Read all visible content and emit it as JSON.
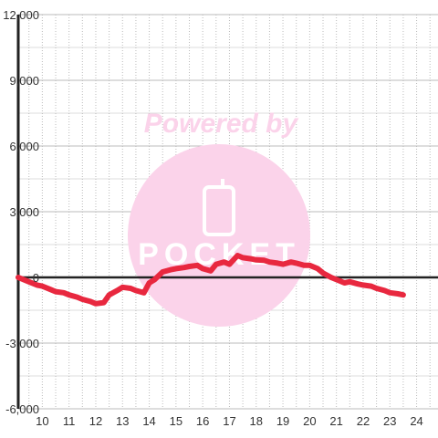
{
  "watermark": {
    "powered_by": "Powered by",
    "brand": "POCKET",
    "icon": "phone-icon",
    "color": "#fbd3ea"
  },
  "colors": {
    "line": "#e8283f",
    "zero_line": "#222222",
    "grid_major": "#bbbbbb",
    "grid_minor": "#dddddd"
  },
  "chart_data": {
    "type": "line",
    "x_ticks": [
      "10",
      "11",
      "12",
      "13",
      "14",
      "15",
      "16",
      "17",
      "18",
      "19",
      "20",
      "21",
      "22",
      "23",
      "24"
    ],
    "y_ticks": [
      "12,000",
      "9,000",
      "6,000",
      "3,000",
      "0",
      "-3,000",
      "-6,000"
    ],
    "xlim": [
      9.1,
      24.8
    ],
    "ylim": [
      -6000,
      12000
    ],
    "grid": true,
    "series": [
      {
        "x": [
          9.1,
          9.5,
          9.8,
          10.0,
          10.3,
          10.5,
          10.8,
          11.0,
          11.3,
          11.5,
          11.8,
          12.0,
          12.3,
          12.5,
          12.8,
          13.0,
          13.3,
          13.5,
          13.8,
          14.0,
          14.2,
          14.5,
          14.8,
          15.0,
          15.3,
          15.5,
          15.8,
          16.0,
          16.3,
          16.5,
          16.8,
          17.0,
          17.3,
          17.5,
          17.8,
          18.0,
          18.3,
          18.5,
          18.8,
          19.0,
          19.3,
          19.5,
          19.8,
          20.0,
          20.3,
          20.5,
          20.8,
          21.0,
          21.3,
          21.5,
          21.8,
          22.0,
          22.3,
          22.5,
          22.8,
          23.0,
          23.3,
          23.5
        ],
        "y": [
          0,
          -200,
          -350,
          -400,
          -550,
          -650,
          -700,
          -800,
          -900,
          -1000,
          -1100,
          -1200,
          -1150,
          -800,
          -600,
          -450,
          -500,
          -600,
          -700,
          -250,
          -100,
          250,
          350,
          400,
          450,
          500,
          550,
          400,
          300,
          600,
          700,
          600,
          1000,
          900,
          850,
          800,
          780,
          700,
          650,
          600,
          700,
          650,
          550,
          550,
          400,
          200,
          0,
          -100,
          -250,
          -200,
          -300,
          -350,
          -400,
          -500,
          -600,
          -700,
          -750,
          -800
        ]
      }
    ]
  }
}
